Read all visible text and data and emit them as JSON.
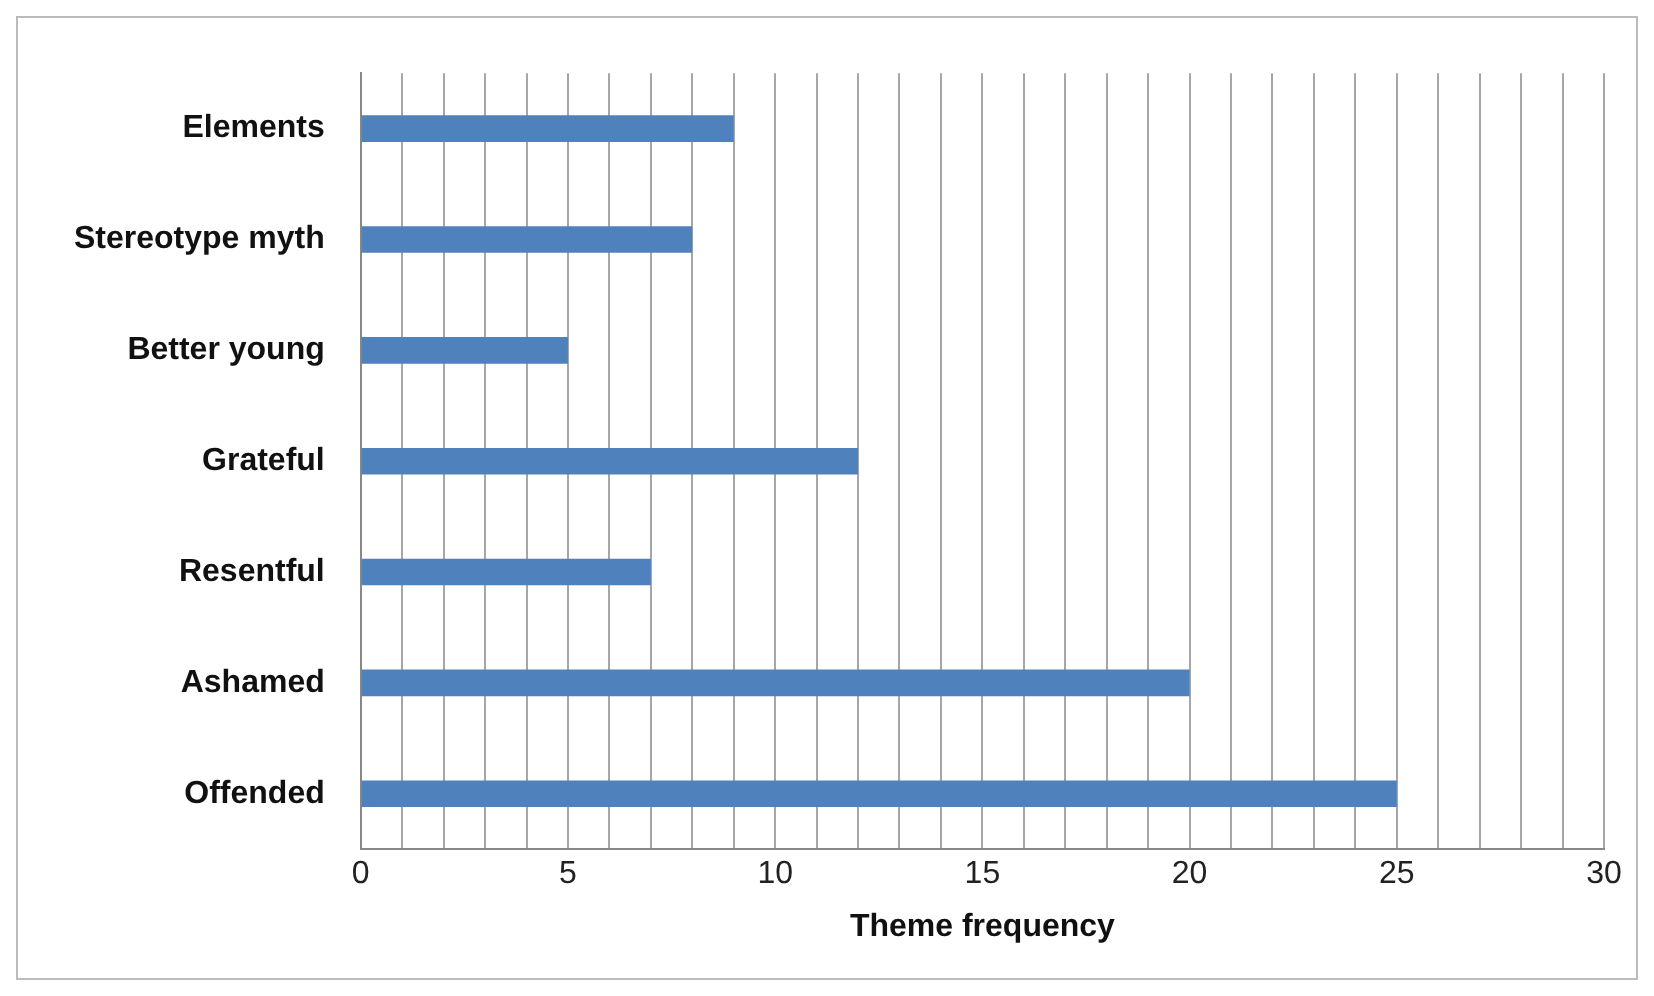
{
  "chart_data": {
    "type": "bar",
    "orientation": "horizontal",
    "categories": [
      "Elements",
      "Stereotype myth",
      "Better young",
      "Grateful",
      "Resentful",
      "Ashamed",
      "Offended"
    ],
    "values": [
      9,
      8,
      5,
      12,
      7,
      20,
      25
    ],
    "color": "#4f81bd",
    "xlabel": "Theme frequency",
    "xlim": [
      0,
      30
    ],
    "xticks": [
      0,
      {
        "value": 1,
        "label": null
      },
      {
        "value": 2,
        "label": null
      },
      {
        "value": 3,
        "label": null
      },
      {
        "value": 4,
        "label": null
      },
      5,
      {
        "value": 6,
        "label": null
      },
      {
        "value": 7,
        "label": null
      },
      {
        "value": 8,
        "label": null
      },
      {
        "value": 9,
        "label": null
      },
      10,
      {
        "value": 11,
        "label": null
      },
      {
        "value": 12,
        "label": null
      },
      {
        "value": 13,
        "label": null
      },
      {
        "value": 14,
        "label": null
      },
      15,
      {
        "value": 16,
        "label": null
      },
      {
        "value": 17,
        "label": null
      },
      {
        "value": 18,
        "label": null
      },
      {
        "value": 19,
        "label": null
      },
      20,
      {
        "value": 21,
        "label": null
      },
      {
        "value": 22,
        "label": null
      },
      {
        "value": 23,
        "label": null
      },
      {
        "value": 24,
        "label": null
      },
      25,
      {
        "value": 26,
        "label": null
      },
      {
        "value": 27,
        "label": null
      },
      {
        "value": 28,
        "label": null
      },
      {
        "value": 29,
        "label": null
      },
      30
    ],
    "grid": "x"
  }
}
